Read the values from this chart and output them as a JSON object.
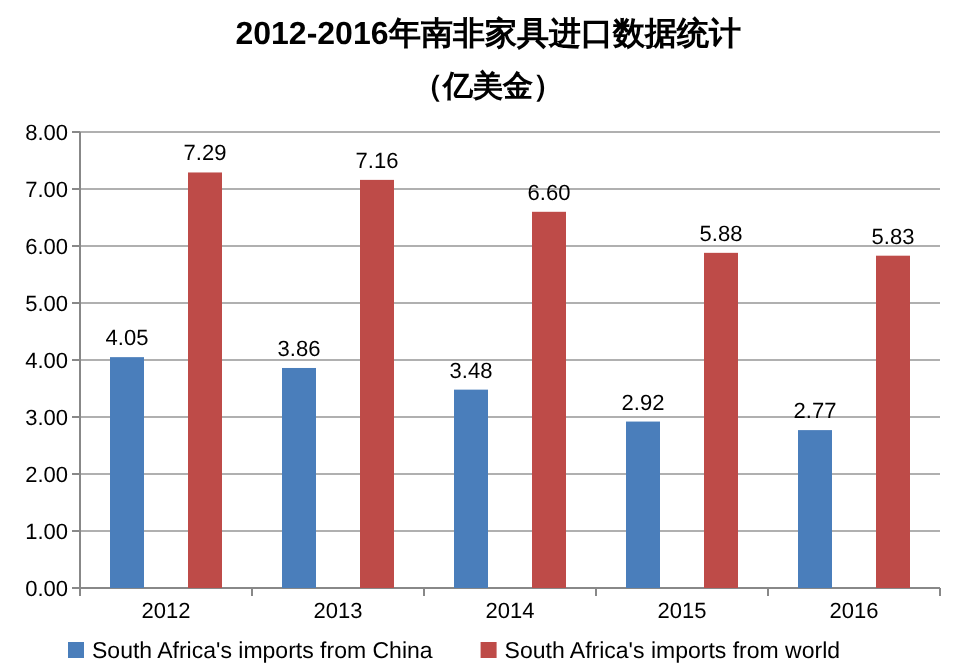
{
  "chart_data": {
    "type": "bar",
    "title": "2012-2016年南非家具进口数据统计",
    "subtitle": "（亿美金）",
    "categories": [
      "2012",
      "2013",
      "2014",
      "2015",
      "2016"
    ],
    "series": [
      {
        "name": "South Africa's imports from China",
        "color": "#4a7ebb",
        "values": [
          4.05,
          3.86,
          3.48,
          2.92,
          2.77
        ],
        "value_labels": [
          "4.05",
          "3.86",
          "3.48",
          "2.92",
          "2.77"
        ]
      },
      {
        "name": "South Africa's imports from world",
        "color": "#be4b48",
        "values": [
          7.29,
          7.16,
          6.6,
          5.88,
          5.83
        ],
        "value_labels": [
          "7.29",
          "7.16",
          "6.60",
          "5.88",
          "5.83"
        ]
      }
    ],
    "ylim": [
      0,
      8
    ],
    "yticks": [
      {
        "value": 0,
        "label": "0.00"
      },
      {
        "value": 1,
        "label": "1.00"
      },
      {
        "value": 2,
        "label": "2.00"
      },
      {
        "value": 3,
        "label": "3.00"
      },
      {
        "value": 4,
        "label": "4.00"
      },
      {
        "value": 5,
        "label": "5.00"
      },
      {
        "value": 6,
        "label": "6.00"
      },
      {
        "value": 7,
        "label": "7.00"
      },
      {
        "value": 8,
        "label": "8.00"
      }
    ],
    "grid": "y",
    "legend": "bottom"
  }
}
